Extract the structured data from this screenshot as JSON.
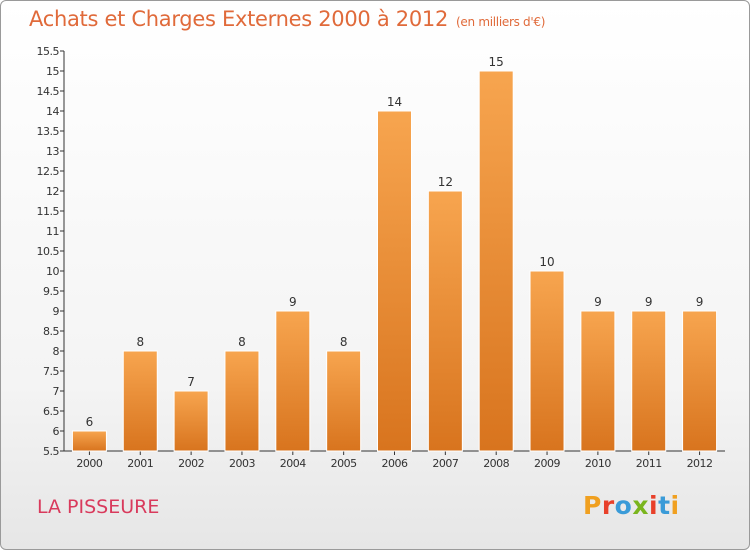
{
  "header": {
    "title": "Achats et Charges Externes 2000 à 2012",
    "subtitle": "(en milliers d'€)"
  },
  "footer": {
    "location": "LA PISSEURE"
  },
  "logo": {
    "text": "Proxiti",
    "colors": [
      "#f0a020",
      "#e8402a",
      "#3a9bd8",
      "#7ab51d",
      "#e8402a",
      "#3a9bd8",
      "#f0a020"
    ]
  },
  "colors": {
    "bar_light": "#f7a54f",
    "bar_dark": "#d8741e",
    "title": "#e06a3a",
    "location": "#d93a5c"
  },
  "chart_data": {
    "type": "bar",
    "title": "Achats et Charges Externes 2000 à 2012",
    "subtitle": "(en milliers d'€)",
    "categories": [
      "2000",
      "2001",
      "2002",
      "2003",
      "2004",
      "2005",
      "2006",
      "2007",
      "2008",
      "2009",
      "2010",
      "2011",
      "2012"
    ],
    "values": [
      6,
      8,
      7,
      8,
      9,
      8,
      14,
      12,
      15,
      10,
      9,
      9,
      9
    ],
    "ylim": [
      5.5,
      15.5
    ],
    "yticks": [
      "5.5",
      "6",
      "6.5",
      "7",
      "7.5",
      "8",
      "8.5",
      "9",
      "9.5",
      "10",
      "10.5",
      "11",
      "11.5",
      "12",
      "12.5",
      "13",
      "13.5",
      "14",
      "14.5",
      "15",
      "15.5"
    ],
    "xlabel": "",
    "ylabel": "",
    "grid": false,
    "data_labels": true
  }
}
